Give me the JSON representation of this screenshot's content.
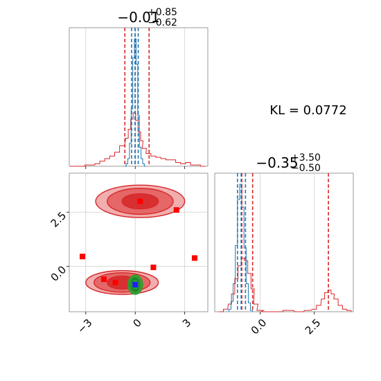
{
  "chart_data": {
    "type": "corner",
    "kl_label": "KL = 0.0772",
    "colors": {
      "reference": "#d62728",
      "samples": "#1f77b4",
      "core": "#2ca02c",
      "center": "#1f1fff"
    },
    "panels": [
      {
        "id": "marginal-x",
        "type": "histogram",
        "title": {
          "main": "−0.01",
          "upper": "+0.85",
          "lower": "−0.62"
        },
        "xlim": [
          -4.0,
          4.4
        ],
        "grid": true,
        "quantile_lines": {
          "reference": [
            -0.63,
            -0.01,
            0.84
          ],
          "samples": [
            -0.22,
            -0.01,
            0.18
          ]
        },
        "reference_bin_centers": [
          -3.8,
          -3.5,
          -3.2,
          -2.9,
          -2.6,
          -2.3,
          -2.0,
          -1.7,
          -1.4,
          -1.1,
          -0.8,
          -0.5,
          -0.35,
          -0.2,
          -0.05,
          0.1,
          0.25,
          0.4,
          0.55,
          0.8,
          1.1,
          1.4,
          1.7,
          2.0,
          2.3,
          2.6,
          2.9,
          3.2,
          3.5,
          3.8,
          4.1
        ],
        "reference_density": [
          0.0,
          0.0,
          0.0,
          0.01,
          0.01,
          0.02,
          0.04,
          0.06,
          0.08,
          0.11,
          0.16,
          0.22,
          0.29,
          0.37,
          0.42,
          0.36,
          0.27,
          0.2,
          0.14,
          0.1,
          0.08,
          0.07,
          0.06,
          0.05,
          0.05,
          0.03,
          0.02,
          0.03,
          0.01,
          0.01,
          0.0
        ],
        "sample_bin_centers": [
          -0.6,
          -0.5,
          -0.4,
          -0.3,
          -0.2,
          -0.1,
          0.0,
          0.1,
          0.2,
          0.3,
          0.4,
          0.5,
          0.6
        ],
        "sample_density": [
          0.0,
          0.02,
          0.06,
          0.18,
          0.45,
          0.85,
          1.0,
          0.8,
          0.4,
          0.15,
          0.06,
          0.02,
          0.0
        ]
      },
      {
        "id": "joint",
        "type": "contour",
        "xlim": [
          -4.0,
          4.4
        ],
        "ylim": [
          -2.1,
          4.3
        ],
        "xticks": [
          "−3",
          "0",
          "3"
        ],
        "xtick_values": [
          -3,
          0,
          3
        ],
        "yticks": [
          "0.0",
          "2.5"
        ],
        "ytick_values": [
          0,
          2.5
        ],
        "grid": true,
        "reference_modes": [
          {
            "cx": 0.3,
            "cy": 3.0,
            "rx": [
              2.7,
              2.0,
              1.1
            ],
            "ry": [
              0.75,
              0.6,
              0.35
            ]
          },
          {
            "cx": -0.8,
            "cy": -0.75,
            "rx": [
              2.2,
              1.7,
              0.9
            ],
            "ry": [
              0.55,
              0.45,
              0.3
            ]
          }
        ],
        "sample_contours": {
          "cx": 0.0,
          "cy": -0.85,
          "rx": [
            0.45,
            0.3,
            0.2
          ],
          "ry": [
            0.45,
            0.35,
            0.2
          ]
        },
        "sample_points": [
          [
            0.0,
            -0.85
          ]
        ],
        "outlier_points": [
          [
            -3.2,
            0.45
          ],
          [
            -1.9,
            -0.6
          ],
          [
            -1.2,
            -0.75
          ],
          [
            0.3,
            3.0
          ],
          [
            1.1,
            -0.05
          ],
          [
            2.5,
            2.6
          ],
          [
            3.6,
            0.38
          ]
        ]
      },
      {
        "id": "marginal-y",
        "type": "histogram",
        "title": {
          "main": "−0.35",
          "upper": "+3.50",
          "lower": "−0.50"
        },
        "xlim": [
          -2.1,
          4.3
        ],
        "xticks": [
          "0.0",
          "2.5"
        ],
        "xtick_values": [
          0,
          2.5
        ],
        "grid": true,
        "quantile_lines": {
          "reference": [
            -0.85,
            -0.35,
            3.15
          ],
          "samples": [
            -1.05,
            -0.88,
            -0.68
          ]
        },
        "reference_bin_centers": [
          -1.8,
          -1.6,
          -1.4,
          -1.25,
          -1.1,
          -0.95,
          -0.8,
          -0.65,
          -0.5,
          -0.35,
          -0.2,
          0.0,
          0.3,
          0.8,
          1.3,
          1.8,
          2.2,
          2.5,
          2.7,
          2.9,
          3.05,
          3.2,
          3.35,
          3.5,
          3.7,
          3.9,
          4.1
        ],
        "reference_density": [
          0.0,
          0.02,
          0.06,
          0.14,
          0.26,
          0.36,
          0.42,
          0.4,
          0.3,
          0.18,
          0.06,
          0.01,
          0.0,
          0.0,
          0.01,
          0.0,
          0.01,
          0.02,
          0.05,
          0.1,
          0.15,
          0.17,
          0.14,
          0.1,
          0.05,
          0.02,
          0.01
        ],
        "sample_bin_centers": [
          -1.4,
          -1.3,
          -1.2,
          -1.1,
          -1.0,
          -0.9,
          -0.8,
          -0.7,
          -0.6,
          -0.5,
          -0.4
        ],
        "sample_density": [
          0.02,
          0.08,
          0.22,
          0.52,
          0.88,
          1.0,
          0.82,
          0.5,
          0.22,
          0.07,
          0.01
        ]
      }
    ]
  }
}
